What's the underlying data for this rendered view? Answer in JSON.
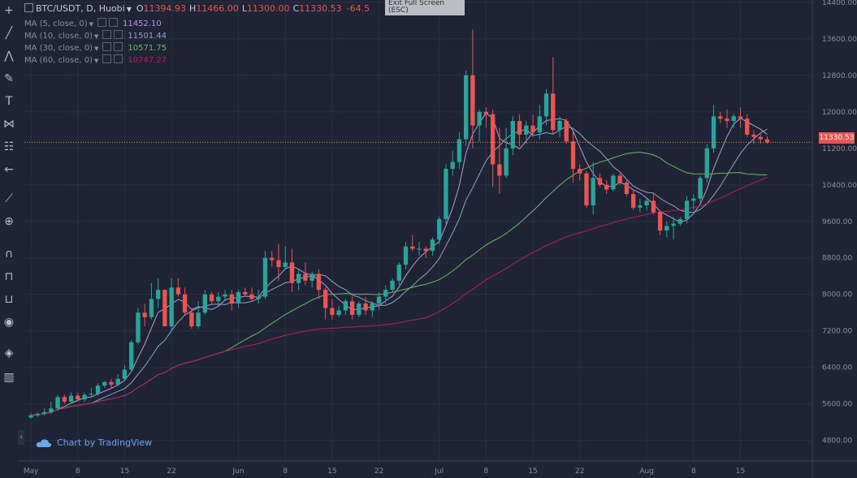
{
  "header": {
    "symbol": "BTC/USDT, D, Huobi",
    "open_label": "O",
    "open": "11394.93",
    "high_label": "H",
    "high": "11466.00",
    "low_label": "L",
    "low": "11300.00",
    "close_label": "C",
    "close": "11330.53",
    "change": "-64.5"
  },
  "tooltip": {
    "line1": "Exit Full Screen",
    "line2": "(ESC)"
  },
  "indicators": [
    {
      "label": "MA (5, close, 0)",
      "value": "11452.10",
      "color": "#b39ddb"
    },
    {
      "label": "MA (10, close, 0)",
      "value": "11501.44",
      "color": "#90a4c8"
    },
    {
      "label": "MA (30, close, 0)",
      "value": "10571.75",
      "color": "#66bb6a"
    },
    {
      "label": "MA (60, close, 0)",
      "value": "10747.27",
      "color": "#c2185b"
    }
  ],
  "last_price_label": "11330.53",
  "brand": "Chart by TradingView",
  "colors": {
    "up": "#26a69a",
    "down": "#ef5350",
    "background": "#1e2335",
    "grid": "#2a2f42",
    "axis_text": "#8a8fa0"
  },
  "chart_data": {
    "type": "candlestick",
    "x_ticks": [
      "May",
      "8",
      "15",
      "22",
      "Jun",
      "8",
      "15",
      "22",
      "Jul",
      "8",
      "15",
      "22",
      "Aug",
      "8",
      "15"
    ],
    "y_ticks": [
      4800,
      5600,
      6400,
      7200,
      8000,
      8800,
      9600,
      10400,
      11200,
      12000,
      12800,
      13600,
      14400
    ],
    "y_range": [
      4350,
      14450
    ],
    "last_price": 11330.53,
    "candles": [
      [
        5300,
        5400,
        5280,
        5350
      ],
      [
        5350,
        5420,
        5300,
        5380
      ],
      [
        5380,
        5500,
        5350,
        5420
      ],
      [
        5420,
        5650,
        5380,
        5500
      ],
      [
        5500,
        5800,
        5450,
        5750
      ],
      [
        5750,
        5800,
        5600,
        5650
      ],
      [
        5650,
        5850,
        5600,
        5780
      ],
      [
        5780,
        5850,
        5650,
        5700
      ],
      [
        5700,
        5850,
        5650,
        5800
      ],
      [
        5800,
        5950,
        5750,
        5820
      ],
      [
        5820,
        6050,
        5780,
        6000
      ],
      [
        6000,
        6100,
        5950,
        6080
      ],
      [
        6080,
        6150,
        5950,
        6020
      ],
      [
        6020,
        6250,
        6000,
        6150
      ],
      [
        6150,
        6450,
        6100,
        6350
      ],
      [
        6350,
        7000,
        6300,
        6950
      ],
      [
        6950,
        7700,
        6900,
        7600
      ],
      [
        7600,
        7800,
        7300,
        7500
      ],
      [
        7500,
        8250,
        7450,
        7900
      ],
      [
        7900,
        8350,
        7700,
        8100
      ],
      [
        8100,
        8050,
        7350,
        7300
      ],
      [
        7300,
        8350,
        7200,
        8150
      ],
      [
        8150,
        8350,
        7950,
        8000
      ],
      [
        8000,
        8150,
        7550,
        7600
      ],
      [
        7600,
        7700,
        7250,
        7300
      ],
      [
        7300,
        7850,
        7250,
        7600
      ],
      [
        7600,
        8100,
        7550,
        8000
      ],
      [
        8000,
        8050,
        7800,
        7850
      ],
      [
        7850,
        8050,
        7750,
        7950
      ],
      [
        7950,
        8100,
        7850,
        8000
      ],
      [
        8000,
        8100,
        7650,
        7800
      ],
      [
        7800,
        8100,
        7700,
        8050
      ],
      [
        8050,
        8150,
        7950,
        8000
      ],
      [
        8000,
        8150,
        7850,
        7900
      ],
      [
        7900,
        8100,
        7800,
        7950
      ],
      [
        7950,
        8950,
        7900,
        8800
      ],
      [
        8800,
        8950,
        8600,
        8750
      ],
      [
        8750,
        9100,
        8300,
        8600
      ],
      [
        8600,
        9050,
        8550,
        8700
      ],
      [
        8700,
        9000,
        8050,
        8250
      ],
      [
        8250,
        8550,
        8100,
        8450
      ],
      [
        8450,
        8700,
        8200,
        8300
      ],
      [
        8300,
        8500,
        8150,
        8450
      ],
      [
        8450,
        8550,
        7900,
        8100
      ],
      [
        8100,
        8150,
        7450,
        7700
      ],
      [
        7700,
        7900,
        7450,
        7550
      ],
      [
        7550,
        7750,
        7500,
        7650
      ],
      [
        7650,
        7900,
        7550,
        7850
      ],
      [
        7850,
        7950,
        7450,
        7550
      ],
      [
        7550,
        7850,
        7500,
        7800
      ],
      [
        7800,
        7950,
        7550,
        7650
      ],
      [
        7650,
        7850,
        7500,
        7800
      ],
      [
        7800,
        8050,
        7650,
        7950
      ],
      [
        7950,
        8200,
        7800,
        8100
      ],
      [
        8100,
        8350,
        8050,
        8300
      ],
      [
        8300,
        8700,
        8200,
        8650
      ],
      [
        8650,
        9150,
        8550,
        9050
      ],
      [
        9050,
        9300,
        8950,
        9000
      ],
      [
        9000,
        9150,
        8850,
        9000
      ],
      [
        9000,
        9050,
        8800,
        8950
      ],
      [
        8950,
        9250,
        8850,
        9200
      ],
      [
        9200,
        9700,
        9100,
        9650
      ],
      [
        9650,
        10850,
        9550,
        10750
      ],
      [
        10750,
        11150,
        10600,
        10900
      ],
      [
        10900,
        11550,
        10750,
        11400
      ],
      [
        11400,
        12900,
        11250,
        12800
      ],
      [
        12800,
        13800,
        11200,
        11700
      ],
      [
        11700,
        12050,
        11350,
        12000
      ],
      [
        12000,
        12100,
        11650,
        11950
      ],
      [
        11950,
        12050,
        10350,
        10850
      ],
      [
        10850,
        11650,
        10200,
        10600
      ],
      [
        10600,
        11650,
        10550,
        11200
      ],
      [
        11200,
        11900,
        11050,
        11800
      ],
      [
        11800,
        11950,
        11250,
        11500
      ],
      [
        11500,
        11800,
        11300,
        11700
      ],
      [
        11700,
        11950,
        11450,
        11550
      ],
      [
        11550,
        12150,
        11400,
        11900
      ],
      [
        11900,
        12500,
        11700,
        12400
      ],
      [
        12400,
        13200,
        11500,
        11600
      ],
      [
        11600,
        11900,
        11450,
        11800
      ],
      [
        11800,
        11850,
        11300,
        11350
      ],
      [
        11350,
        11550,
        10450,
        10750
      ],
      [
        10750,
        10850,
        10500,
        10650
      ],
      [
        10650,
        10700,
        9900,
        9950
      ],
      [
        9950,
        10900,
        9750,
        10550
      ],
      [
        10550,
        10650,
        10350,
        10400
      ],
      [
        10400,
        10500,
        10200,
        10300
      ],
      [
        10300,
        10650,
        10250,
        10600
      ],
      [
        10600,
        10650,
        10400,
        10450
      ],
      [
        10450,
        10500,
        10150,
        10200
      ],
      [
        10200,
        10300,
        9850,
        9900
      ],
      [
        9900,
        10100,
        9800,
        9950
      ],
      [
        9950,
        10100,
        9850,
        10050
      ],
      [
        10050,
        10200,
        9750,
        9800
      ],
      [
        9800,
        9850,
        9300,
        9400
      ],
      [
        9400,
        9600,
        9250,
        9500
      ],
      [
        9500,
        9700,
        9200,
        9550
      ],
      [
        9550,
        9700,
        9500,
        9650
      ],
      [
        9650,
        10150,
        9550,
        10050
      ],
      [
        10050,
        10200,
        9850,
        10100
      ],
      [
        10100,
        10600,
        10000,
        10550
      ],
      [
        10550,
        11300,
        10450,
        11200
      ],
      [
        11200,
        12150,
        11100,
        11900
      ],
      [
        11900,
        12000,
        11750,
        11850
      ],
      [
        11850,
        12050,
        11650,
        11800
      ],
      [
        11800,
        11950,
        11650,
        11900
      ],
      [
        11900,
        12100,
        11650,
        11850
      ],
      [
        11850,
        11950,
        11450,
        11500
      ],
      [
        11500,
        11600,
        11300,
        11450
      ],
      [
        11450,
        11550,
        11300,
        11400
      ],
      [
        11394.93,
        11466,
        11300,
        11330.53
      ]
    ],
    "moving_averages": [
      {
        "name": "MA (5, close, 0)",
        "period": 5,
        "color": "#b39ddb",
        "last": 11452.1
      },
      {
        "name": "MA (10, close, 0)",
        "period": 10,
        "color": "#90a4c8",
        "last": 11501.44
      },
      {
        "name": "MA (30, close, 0)",
        "period": 30,
        "color": "#66bb6a",
        "last": 10571.75
      },
      {
        "name": "MA (60, close, 0)",
        "period": 60,
        "color": "#c2185b",
        "last": 10747.27
      }
    ]
  }
}
